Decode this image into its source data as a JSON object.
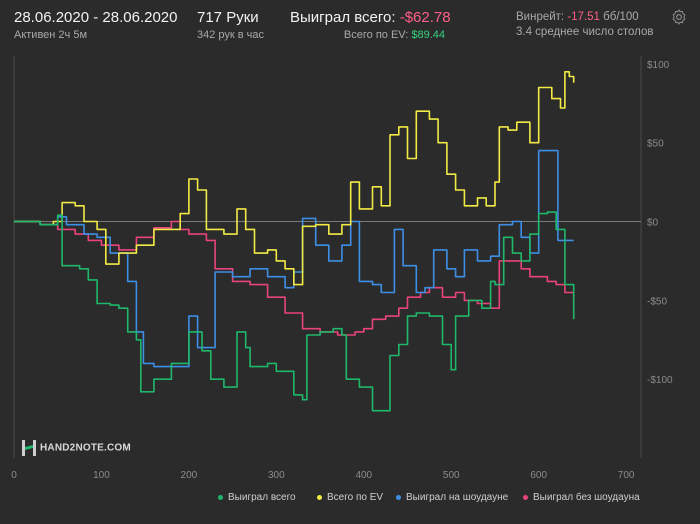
{
  "header": {
    "date_range": "28.06.2020 - 28.06.2020",
    "active": "Активен 2ч 5м",
    "hands": "717 Руки",
    "hands_per_hour": "342 рук в час",
    "won_total_label": "Выиграл всего:",
    "won_total_value": "-$62.78",
    "ev_label": "Всего по EV:",
    "ev_value": "$89.44",
    "winrate_label": "Винрейт:",
    "winrate_value": "-17.51",
    "winrate_unit": "бб/100",
    "avg_tables": "3.4 среднее число столов"
  },
  "logo": {
    "text": "HAND2NOTE.COM"
  },
  "colors": {
    "won": "#1fb86b",
    "ev": "#f2ea45",
    "showdown": "#3d8fe6",
    "nonshowdown": "#e8437a"
  },
  "chart_data": {
    "type": "line",
    "xlim": [
      0,
      717
    ],
    "ylim": [
      -150,
      105
    ],
    "x_ticks": [
      "0",
      "100",
      "200",
      "300",
      "400",
      "500",
      "600",
      "700"
    ],
    "y_ticks": [
      "$100",
      "$50",
      "$0",
      "-$50",
      "-$100"
    ],
    "grid": false,
    "legend_position": "bottom",
    "series": [
      {
        "name": "Выиграл всего",
        "key": "won",
        "points": [
          [
            0,
            0
          ],
          [
            30,
            -2
          ],
          [
            50,
            4
          ],
          [
            55,
            -28
          ],
          [
            75,
            -30
          ],
          [
            85,
            -37
          ],
          [
            95,
            -52
          ],
          [
            110,
            -53
          ],
          [
            120,
            -55
          ],
          [
            130,
            -70
          ],
          [
            140,
            -75
          ],
          [
            145,
            -108
          ],
          [
            160,
            -100
          ],
          [
            180,
            -90
          ],
          [
            200,
            -70
          ],
          [
            215,
            -82
          ],
          [
            225,
            -100
          ],
          [
            240,
            -105
          ],
          [
            255,
            -70
          ],
          [
            265,
            -80
          ],
          [
            270,
            -92
          ],
          [
            290,
            -90
          ],
          [
            300,
            -95
          ],
          [
            320,
            -110
          ],
          [
            330,
            -113
          ],
          [
            335,
            -72
          ],
          [
            350,
            -70
          ],
          [
            365,
            -68
          ],
          [
            375,
            -72
          ],
          [
            380,
            -100
          ],
          [
            395,
            -105
          ],
          [
            410,
            -120
          ],
          [
            420,
            -120
          ],
          [
            430,
            -85
          ],
          [
            440,
            -78
          ],
          [
            450,
            -60
          ],
          [
            460,
            -58
          ],
          [
            475,
            -60
          ],
          [
            490,
            -78
          ],
          [
            500,
            -94
          ],
          [
            505,
            -60
          ],
          [
            520,
            -50
          ],
          [
            535,
            -55
          ],
          [
            545,
            -38
          ],
          [
            550,
            -40
          ],
          [
            560,
            -10
          ],
          [
            570,
            -20
          ],
          [
            580,
            -25
          ],
          [
            590,
            -8
          ],
          [
            600,
            5
          ],
          [
            610,
            6
          ],
          [
            620,
            -5
          ],
          [
            630,
            -40
          ],
          [
            640,
            -62
          ]
        ]
      },
      {
        "name": "Всего по EV",
        "key": "ev",
        "points": [
          [
            0,
            0
          ],
          [
            30,
            -2
          ],
          [
            45,
            0
          ],
          [
            55,
            12
          ],
          [
            70,
            10
          ],
          [
            80,
            0
          ],
          [
            95,
            -5
          ],
          [
            105,
            -27
          ],
          [
            120,
            -20
          ],
          [
            140,
            -15
          ],
          [
            160,
            -5
          ],
          [
            190,
            5
          ],
          [
            200,
            27
          ],
          [
            210,
            20
          ],
          [
            220,
            -5
          ],
          [
            240,
            -8
          ],
          [
            255,
            8
          ],
          [
            265,
            -5
          ],
          [
            275,
            -20
          ],
          [
            290,
            -18
          ],
          [
            300,
            -25
          ],
          [
            310,
            -30
          ],
          [
            320,
            -40
          ],
          [
            330,
            -3
          ],
          [
            345,
            -2
          ],
          [
            360,
            -8
          ],
          [
            375,
            -2
          ],
          [
            385,
            25
          ],
          [
            395,
            8
          ],
          [
            410,
            22
          ],
          [
            420,
            10
          ],
          [
            430,
            55
          ],
          [
            440,
            60
          ],
          [
            450,
            40
          ],
          [
            460,
            70
          ],
          [
            475,
            65
          ],
          [
            485,
            50
          ],
          [
            495,
            30
          ],
          [
            505,
            20
          ],
          [
            515,
            10
          ],
          [
            530,
            15
          ],
          [
            540,
            10
          ],
          [
            550,
            25
          ],
          [
            555,
            60
          ],
          [
            565,
            58
          ],
          [
            575,
            63
          ],
          [
            590,
            50
          ],
          [
            600,
            85
          ],
          [
            615,
            78
          ],
          [
            625,
            72
          ],
          [
            630,
            95
          ],
          [
            635,
            92
          ],
          [
            640,
            88
          ]
        ]
      },
      {
        "name": "Выиграл на шоудауне",
        "key": "showdown",
        "points": [
          [
            0,
            0
          ],
          [
            30,
            -2
          ],
          [
            50,
            3
          ],
          [
            60,
            -2
          ],
          [
            80,
            -8
          ],
          [
            95,
            -10
          ],
          [
            110,
            -20
          ],
          [
            130,
            -38
          ],
          [
            140,
            -70
          ],
          [
            148,
            -90
          ],
          [
            160,
            -92
          ],
          [
            180,
            -92
          ],
          [
            200,
            -60
          ],
          [
            210,
            -80
          ],
          [
            230,
            -32
          ],
          [
            250,
            -35
          ],
          [
            270,
            -30
          ],
          [
            290,
            -35
          ],
          [
            310,
            -42
          ],
          [
            320,
            -32
          ],
          [
            330,
            2
          ],
          [
            345,
            -15
          ],
          [
            360,
            -25
          ],
          [
            375,
            -15
          ],
          [
            385,
            0
          ],
          [
            395,
            -38
          ],
          [
            410,
            -40
          ],
          [
            420,
            -45
          ],
          [
            435,
            -5
          ],
          [
            445,
            -28
          ],
          [
            460,
            -45
          ],
          [
            470,
            -42
          ],
          [
            480,
            -18
          ],
          [
            495,
            -30
          ],
          [
            505,
            -35
          ],
          [
            515,
            -18
          ],
          [
            530,
            -25
          ],
          [
            545,
            -22
          ],
          [
            555,
            -2
          ],
          [
            570,
            0
          ],
          [
            580,
            -10
          ],
          [
            590,
            -20
          ],
          [
            600,
            45
          ],
          [
            615,
            45
          ],
          [
            622,
            -12
          ],
          [
            640,
            -12
          ]
        ]
      },
      {
        "name": "Выиграл без шоудауна",
        "key": "nonshowdown",
        "points": [
          [
            0,
            0
          ],
          [
            30,
            -2
          ],
          [
            50,
            -5
          ],
          [
            70,
            -8
          ],
          [
            85,
            -12
          ],
          [
            100,
            -15
          ],
          [
            120,
            -18
          ],
          [
            140,
            -10
          ],
          [
            160,
            -4
          ],
          [
            180,
            0
          ],
          [
            190,
            -5
          ],
          [
            200,
            -8
          ],
          [
            220,
            -12
          ],
          [
            230,
            -30
          ],
          [
            250,
            -38
          ],
          [
            270,
            -40
          ],
          [
            290,
            -48
          ],
          [
            310,
            -58
          ],
          [
            330,
            -68
          ],
          [
            350,
            -70
          ],
          [
            370,
            -72
          ],
          [
            390,
            -70
          ],
          [
            400,
            -68
          ],
          [
            410,
            -62
          ],
          [
            425,
            -60
          ],
          [
            440,
            -55
          ],
          [
            450,
            -48
          ],
          [
            465,
            -45
          ],
          [
            475,
            -42
          ],
          [
            490,
            -48
          ],
          [
            505,
            -45
          ],
          [
            515,
            -50
          ],
          [
            530,
            -52
          ],
          [
            545,
            -55
          ],
          [
            555,
            -25
          ],
          [
            570,
            -25
          ],
          [
            580,
            -30
          ],
          [
            590,
            -35
          ],
          [
            600,
            -35
          ],
          [
            610,
            -38
          ],
          [
            620,
            -40
          ],
          [
            630,
            -45
          ],
          [
            640,
            -52
          ]
        ]
      }
    ]
  }
}
